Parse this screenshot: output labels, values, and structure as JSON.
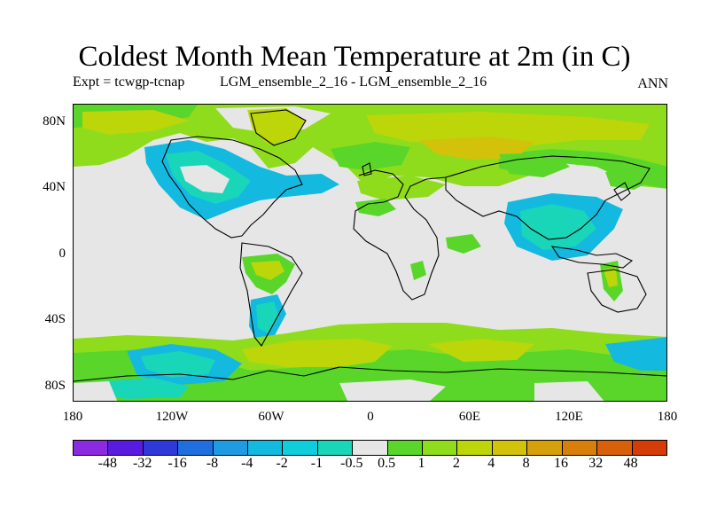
{
  "title": "Coldest Month Mean Temperature at 2m (in C)",
  "subtitle_left": "Expt = tcwgp-tcnap",
  "subtitle_center": "LGM_ensemble_2_16 - LGM_ensemble_2_16",
  "subtitle_right": "ANN",
  "y_ticks": [
    "80N",
    "40N",
    "0",
    "40S",
    "80S"
  ],
  "x_ticks": [
    "180",
    "120W",
    "60W",
    "0",
    "60E",
    "120E",
    "180"
  ],
  "colorbar": {
    "colors": [
      "#8a2be2",
      "#5a1be0",
      "#2d39d8",
      "#1f6fe0",
      "#1e9be2",
      "#14b9e0",
      "#10cddb",
      "#19d6b8",
      "#e6e6e6",
      "#59d629",
      "#8fdc1c",
      "#bcd60a",
      "#d2c20a",
      "#d6a00a",
      "#d87e0a",
      "#d8600a",
      "#d43c08"
    ],
    "labels": [
      "-48",
      "-32",
      "-16",
      "-8",
      "-4",
      "-2",
      "-1",
      "-0.5",
      "0.5",
      "1",
      "2",
      "4",
      "8",
      "16",
      "32",
      "48"
    ]
  },
  "palette": {
    "neutral": "#e6e6e6",
    "light_green": "#59d629",
    "green": "#8fdc1c",
    "yellow_green": "#bcd60a",
    "olive": "#d2c20a",
    "teal": "#19d6b8",
    "cyan": "#10cddb",
    "light_blue": "#14b9e0"
  }
}
